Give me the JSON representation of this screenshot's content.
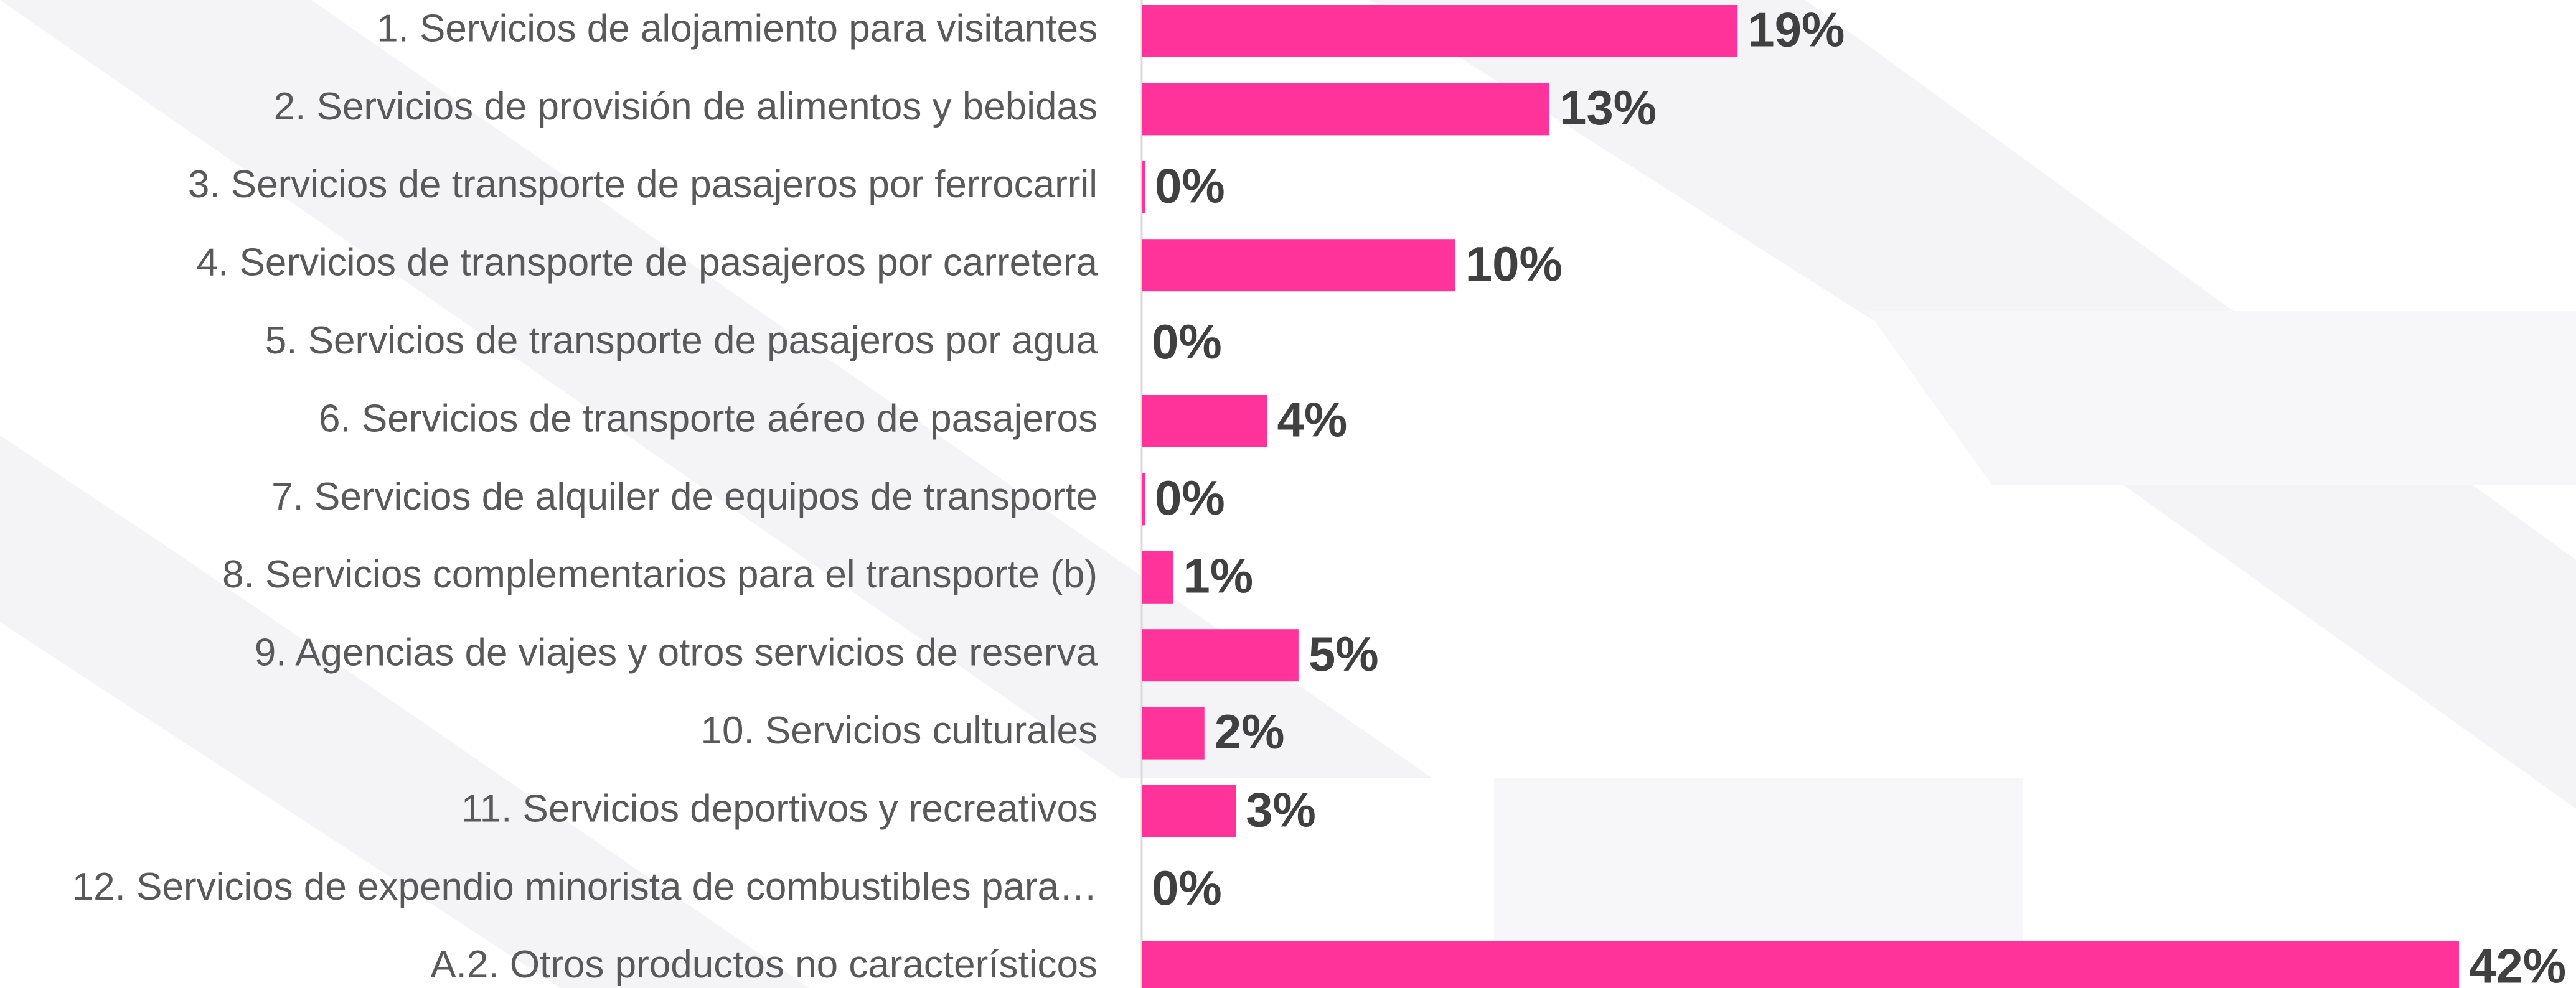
{
  "chart_data": {
    "type": "bar",
    "orientation": "horizontal",
    "categories": [
      "1. Servicios de alojamiento para visitantes",
      "2. Servicios de provisión de alimentos y bebidas",
      "3. Servicios de transporte de pasajeros por ferrocarril",
      "4. Servicios de transporte de pasajeros por carretera",
      "5. Servicios de transporte de pasajeros por agua",
      "6. Servicios de transporte aéreo de pasajeros",
      "7. Servicios de alquiler de equipos de transporte",
      "8. Servicios complementarios para el transporte (b)",
      "9. Agencias de viajes y otros servicios de reserva",
      "10. Servicios culturales",
      "11. Servicios deportivos y recreativos",
      "12. Servicios de expendio minorista de combustibles para…",
      "A.2. Otros productos no característicos"
    ],
    "values": [
      19,
      13,
      0.1,
      10,
      0,
      4,
      0.1,
      1,
      5,
      2,
      3,
      0,
      42
    ],
    "value_labels": [
      "19%",
      "13%",
      "0%",
      "10%",
      "0%",
      "4%",
      "0%",
      "1%",
      "5%",
      "2%",
      "3%",
      "0%",
      "42%"
    ],
    "color": "#ff3399",
    "xlim": [
      0,
      42
    ]
  }
}
